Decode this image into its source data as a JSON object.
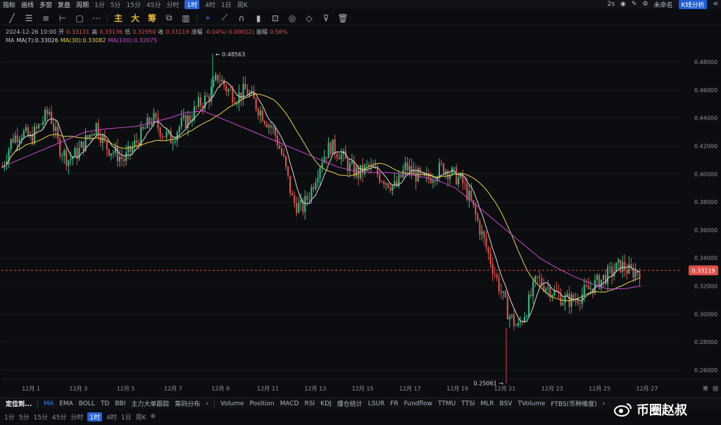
{
  "topbar": {
    "items": [
      "指标",
      "画线",
      "多窗",
      "复盘",
      "周期"
    ],
    "intervals": [
      "1分",
      "5分",
      "15分",
      "45分",
      "分时",
      "1时",
      "4时",
      "1日",
      "周K"
    ],
    "active_interval": "1时",
    "refresh": "2s",
    "template_name": "未命名",
    "analysis_button": "K线分析"
  },
  "toolbar": {
    "tools": [
      "trend-line-icon",
      "horizontal-lines-icon",
      "parallel-lines-icon",
      "ray-icon",
      "rectangle-icon",
      "more-icon"
    ],
    "labels": [
      "主",
      "大",
      "筹"
    ]
  },
  "ohlc": {
    "time": "2024-12-26 10:00",
    "open_label": "开",
    "open": "0.33131",
    "high_label": "高",
    "high": "0.33136",
    "low_label": "低",
    "low": "0.32950",
    "close_label": "收",
    "close": "0.33119",
    "change_label": "涨幅",
    "change": "-0.04%(-0.00012)",
    "amp_label": "振幅",
    "amp": "0.56%"
  },
  "ma": {
    "name": "MA",
    "ma7": "MA(7):0.33026",
    "ma30": "MA(30):0.33082",
    "ma100": "MA(100):0.32075"
  },
  "chart_data": {
    "type": "candlestick",
    "interval": "1h",
    "y_ticks": [
      "0.48000",
      "0.46000",
      "0.44000",
      "0.42000",
      "0.40000",
      "0.38000",
      "0.36000",
      "0.34000",
      "0.32000",
      "0.30000",
      "0.28000",
      "0.26000"
    ],
    "ylim": [
      0.255,
      0.49
    ],
    "x_ticks": [
      "12月 1",
      "12月 3",
      "12月 5",
      "12月 7",
      "12月 9",
      "12月 11",
      "12月 13",
      "12月 15",
      "12月 17",
      "12月 19",
      "12月 21",
      "12月 23",
      "12月 25",
      "12月 27"
    ],
    "current_price": "0.33119",
    "max_label": "0.48563",
    "min_label": "0.25061",
    "close_path": [
      0.405,
      0.425,
      0.43,
      0.425,
      0.435,
      0.445,
      0.42,
      0.41,
      0.415,
      0.425,
      0.435,
      0.42,
      0.415,
      0.41,
      0.42,
      0.43,
      0.44,
      0.43,
      0.425,
      0.435,
      0.44,
      0.45,
      0.455,
      0.47,
      0.46,
      0.455,
      0.46,
      0.45,
      0.44,
      0.43,
      0.41,
      0.38,
      0.375,
      0.39,
      0.41,
      0.42,
      0.415,
      0.405,
      0.4,
      0.405,
      0.4,
      0.395,
      0.39,
      0.405,
      0.4,
      0.395,
      0.4,
      0.405,
      0.4,
      0.395,
      0.38,
      0.36,
      0.34,
      0.32,
      0.3,
      0.29,
      0.305,
      0.325,
      0.32,
      0.315,
      0.31,
      0.31,
      0.315,
      0.32,
      0.325,
      0.33,
      0.335,
      0.33,
      0.331
    ],
    "ma100_path": [
      0.405,
      0.41,
      0.415,
      0.42,
      0.425,
      0.43,
      0.432,
      0.433,
      0.434,
      0.437,
      0.44,
      0.444,
      0.445,
      0.44,
      0.435,
      0.43,
      0.425,
      0.42,
      0.415,
      0.41,
      0.405,
      0.402,
      0.401,
      0.401,
      0.4,
      0.398,
      0.395,
      0.39,
      0.38,
      0.37,
      0.36,
      0.35,
      0.34,
      0.333,
      0.327,
      0.322,
      0.318,
      0.318,
      0.32
    ]
  },
  "bottombar": {
    "position_label": "定位到...",
    "indicators": [
      "MA",
      "EMA",
      "BOLL",
      "TD",
      "BBI",
      "主力大单跟踪",
      "筹码分布",
      "›",
      "Volume",
      "Position",
      "MACD",
      "RSI",
      "KDJ",
      "爆仓统计",
      "LSUR",
      "FR",
      "Fundflow",
      "TTMU",
      "TTSI",
      "MLR",
      "BSV",
      "TVolume",
      "FTBS(币种维度)",
      "›"
    ],
    "active": "MA"
  },
  "intervalbar": {
    "intervals": [
      "1分",
      "5分",
      "15分",
      "45分",
      "分时",
      "1时",
      "4时",
      "1日",
      "周K"
    ],
    "active": "1时"
  },
  "axis_corner": [
    "筹",
    "烟"
  ],
  "watermark": "币圈赵叔",
  "colors": {
    "up": "#2ebd85",
    "down": "#e0504a",
    "ma7": "#d9d9d9",
    "ma30": "#e7d14a",
    "ma100": "#c94ad0",
    "accent": "#2a63d8"
  }
}
